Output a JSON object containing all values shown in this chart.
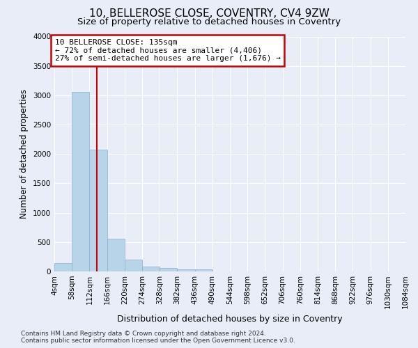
{
  "title": "10, BELLEROSE CLOSE, COVENTRY, CV4 9ZW",
  "subtitle": "Size of property relative to detached houses in Coventry",
  "xlabel": "Distribution of detached houses by size in Coventry",
  "ylabel": "Number of detached properties",
  "footer_line1": "Contains HM Land Registry data © Crown copyright and database right 2024.",
  "footer_line2": "Contains public sector information licensed under the Open Government Licence v3.0.",
  "bin_labels": [
    "4sqm",
    "58sqm",
    "112sqm",
    "166sqm",
    "220sqm",
    "274sqm",
    "328sqm",
    "382sqm",
    "436sqm",
    "490sqm",
    "544sqm",
    "598sqm",
    "652sqm",
    "706sqm",
    "760sqm",
    "814sqm",
    "868sqm",
    "922sqm",
    "976sqm",
    "1030sqm",
    "1084sqm"
  ],
  "bar_heights": [
    140,
    3060,
    2070,
    560,
    200,
    80,
    55,
    40,
    30,
    0,
    0,
    0,
    0,
    0,
    0,
    0,
    0,
    0,
    0,
    0
  ],
  "bar_color": "#b8d4e8",
  "bar_edge_color": "#8ab0cc",
  "background_color": "#e8edf8",
  "grid_color": "#ffffff",
  "vline_color": "#cc0000",
  "annotation_line1": "10 BELLEROSE CLOSE: 135sqm",
  "annotation_line2": "← 72% of detached houses are smaller (4,406)",
  "annotation_line3": "27% of semi-detached houses are larger (1,676) →",
  "annotation_box_facecolor": "#ffffff",
  "annotation_border_color": "#cc0000",
  "ylim": [
    0,
    4000
  ],
  "yticks": [
    0,
    500,
    1000,
    1500,
    2000,
    2500,
    3000,
    3500,
    4000
  ],
  "vline_x_data": 135,
  "title_fontsize": 11,
  "subtitle_fontsize": 9.5,
  "ylabel_fontsize": 8.5,
  "xlabel_fontsize": 9,
  "tick_fontsize": 7.5,
  "footer_fontsize": 6.5,
  "annot_fontsize": 8
}
